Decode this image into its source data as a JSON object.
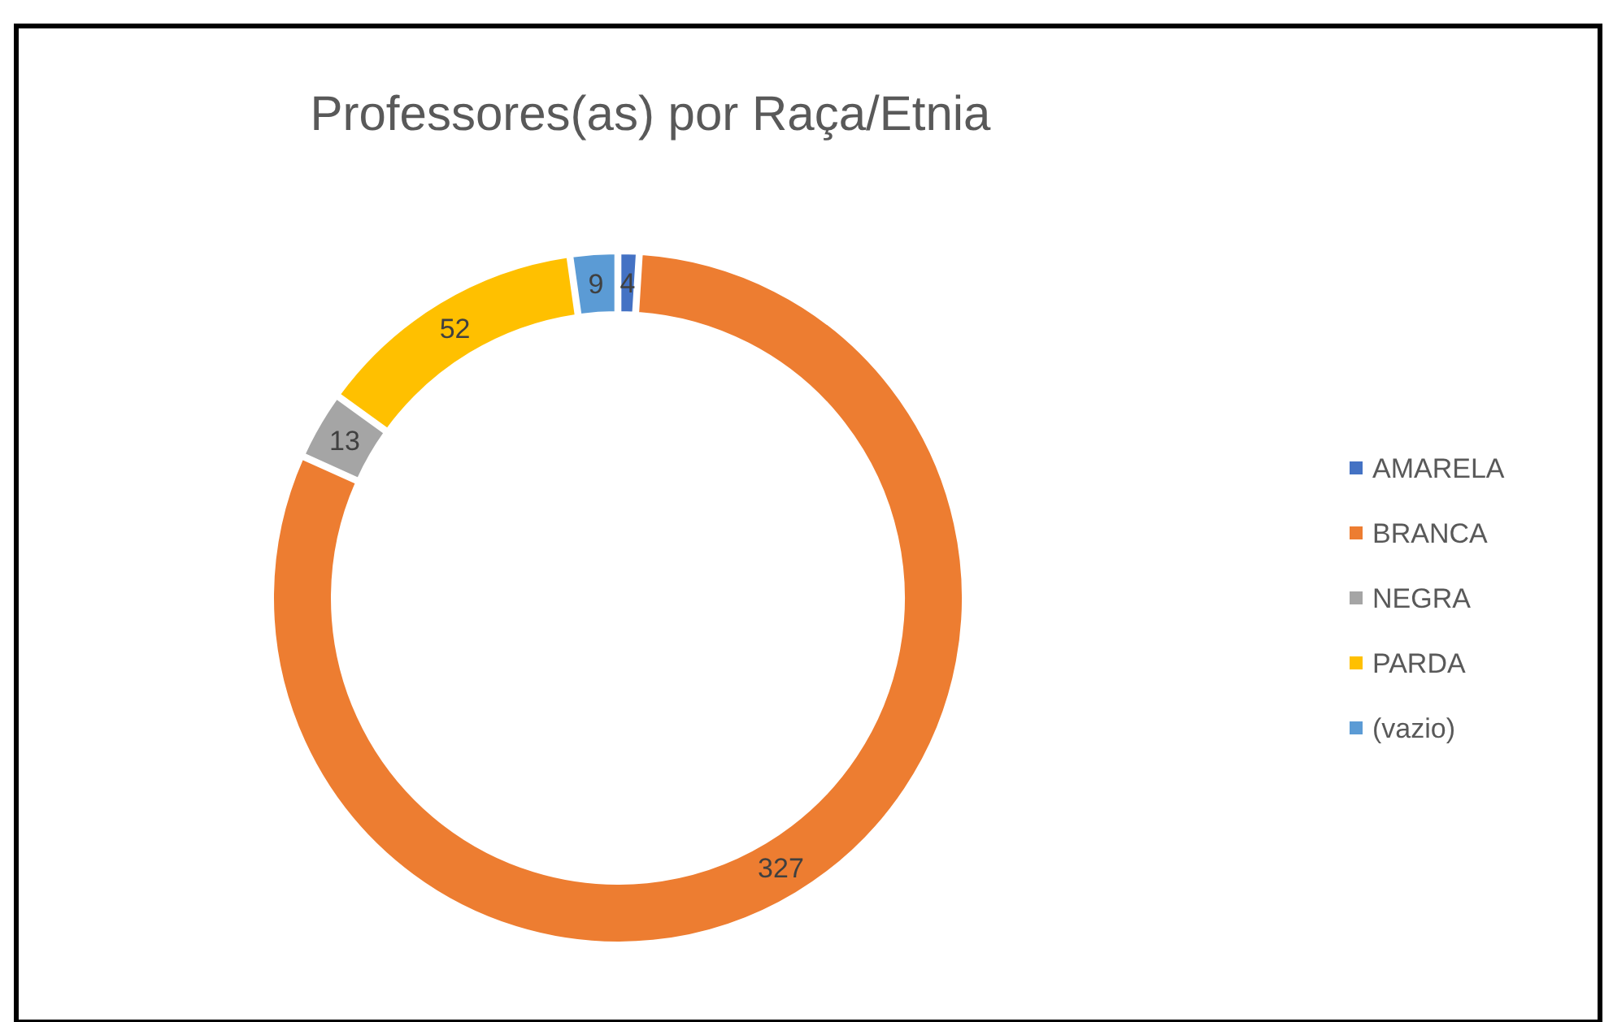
{
  "chart_data": {
    "type": "donut",
    "title": "Professores(as) por Raça/Etnia",
    "categories": [
      "AMARELA",
      "BRANCA",
      "NEGRA",
      "PARDA",
      "(vazio)"
    ],
    "values": [
      4,
      327,
      13,
      52,
      9
    ],
    "colors": [
      "#4472c4",
      "#ed7d31",
      "#a5a5a5",
      "#ffc000",
      "#5b9bd5"
    ],
    "data_labels": true,
    "legend": "right"
  }
}
